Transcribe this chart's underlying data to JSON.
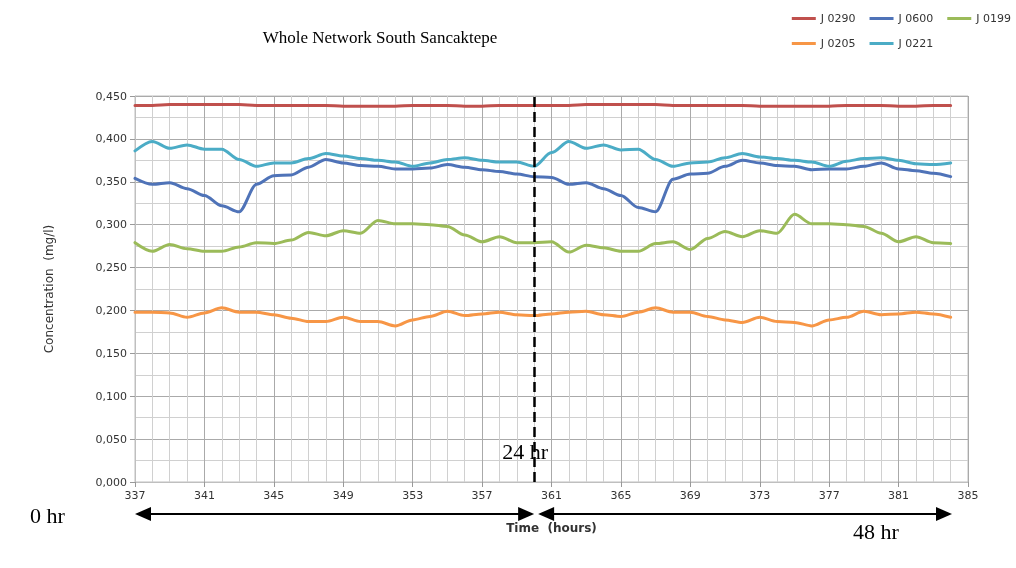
{
  "chart_data": {
    "type": "line",
    "title": "Whole Network South Sancaktepe",
    "xlabel": "Time  (hours)",
    "ylabel": "Concentration  (mg/l)",
    "x": [
      337,
      338,
      339,
      340,
      341,
      342,
      343,
      344,
      345,
      346,
      347,
      348,
      349,
      350,
      351,
      352,
      353,
      354,
      355,
      356,
      357,
      358,
      359,
      360,
      361,
      362,
      363,
      364,
      365,
      366,
      367,
      368,
      369,
      370,
      371,
      372,
      373,
      374,
      375,
      376,
      377,
      378,
      379,
      380,
      381,
      382,
      383,
      384
    ],
    "series": [
      {
        "name": "J 0290",
        "color": "#c0504d",
        "values": [
          0.439,
          0.439,
          0.44,
          0.44,
          0.44,
          0.44,
          0.44,
          0.439,
          0.439,
          0.439,
          0.439,
          0.439,
          0.438,
          0.438,
          0.438,
          0.438,
          0.439,
          0.439,
          0.439,
          0.438,
          0.438,
          0.439,
          0.439,
          0.439,
          0.439,
          0.439,
          0.44,
          0.44,
          0.44,
          0.44,
          0.44,
          0.439,
          0.439,
          0.439,
          0.439,
          0.439,
          0.438,
          0.438,
          0.438,
          0.438,
          0.438,
          0.439,
          0.439,
          0.439,
          0.438,
          0.438,
          0.439,
          0.439
        ]
      },
      {
        "name": "J 0600",
        "color": "#4f73b8",
        "values": [
          0.354,
          0.347,
          0.349,
          0.342,
          0.334,
          0.322,
          0.315,
          0.347,
          0.357,
          0.358,
          0.367,
          0.376,
          0.372,
          0.369,
          0.368,
          0.365,
          0.365,
          0.366,
          0.37,
          0.367,
          0.364,
          0.362,
          0.359,
          0.356,
          0.355,
          0.347,
          0.349,
          0.342,
          0.334,
          0.32,
          0.315,
          0.353,
          0.359,
          0.36,
          0.368,
          0.375,
          0.372,
          0.369,
          0.368,
          0.364,
          0.365,
          0.365,
          0.368,
          0.372,
          0.365,
          0.363,
          0.36,
          0.356
        ]
      },
      {
        "name": "J 0199",
        "color": "#9bbb59",
        "values": [
          0.279,
          0.269,
          0.277,
          0.272,
          0.269,
          0.269,
          0.274,
          0.279,
          0.278,
          0.282,
          0.291,
          0.287,
          0.293,
          0.29,
          0.305,
          0.301,
          0.301,
          0.3,
          0.298,
          0.288,
          0.28,
          0.286,
          0.279,
          0.279,
          0.28,
          0.268,
          0.276,
          0.273,
          0.269,
          0.269,
          0.278,
          0.28,
          0.271,
          0.284,
          0.292,
          0.286,
          0.293,
          0.29,
          0.312,
          0.301,
          0.301,
          0.3,
          0.298,
          0.29,
          0.28,
          0.286,
          0.279,
          0.278
        ]
      },
      {
        "name": "J 0205",
        "color": "#f79646",
        "values": [
          0.198,
          0.198,
          0.197,
          0.192,
          0.197,
          0.203,
          0.198,
          0.198,
          0.195,
          0.191,
          0.187,
          0.187,
          0.192,
          0.187,
          0.187,
          0.182,
          0.189,
          0.193,
          0.199,
          0.194,
          0.196,
          0.198,
          0.195,
          0.194,
          0.196,
          0.198,
          0.199,
          0.195,
          0.193,
          0.198,
          0.203,
          0.198,
          0.198,
          0.193,
          0.189,
          0.186,
          0.192,
          0.187,
          0.186,
          0.182,
          0.189,
          0.192,
          0.199,
          0.195,
          0.196,
          0.198,
          0.196,
          0.192
        ]
      },
      {
        "name": "J 0221",
        "color": "#4bacc6",
        "values": [
          0.386,
          0.397,
          0.389,
          0.393,
          0.388,
          0.388,
          0.376,
          0.368,
          0.372,
          0.372,
          0.377,
          0.383,
          0.38,
          0.377,
          0.375,
          0.373,
          0.368,
          0.372,
          0.376,
          0.378,
          0.375,
          0.373,
          0.373,
          0.368,
          0.384,
          0.397,
          0.389,
          0.393,
          0.387,
          0.388,
          0.376,
          0.368,
          0.372,
          0.373,
          0.378,
          0.383,
          0.379,
          0.377,
          0.375,
          0.373,
          0.368,
          0.374,
          0.377,
          0.378,
          0.375,
          0.371,
          0.37,
          0.372
        ]
      }
    ],
    "xlim": [
      337,
      385
    ],
    "xticks": [
      337,
      341,
      345,
      349,
      353,
      357,
      361,
      365,
      369,
      373,
      377,
      381,
      385
    ],
    "ylim": [
      0,
      0.45
    ],
    "yticks": [
      {
        "value": 0,
        "label": "0,000"
      },
      {
        "value": 0.05,
        "label": "0,050"
      },
      {
        "value": 0.1,
        "label": "0,100"
      },
      {
        "value": 0.15,
        "label": "0,150"
      },
      {
        "value": 0.2,
        "label": "0,200"
      },
      {
        "value": 0.25,
        "label": "0,250"
      },
      {
        "value": 0.3,
        "label": "0,300"
      },
      {
        "value": 0.35,
        "label": "0,350"
      },
      {
        "value": 0.4,
        "label": "0,400"
      },
      {
        "value": 0.45,
        "label": "0,450"
      }
    ],
    "ref_lines": [
      {
        "axis": "x",
        "value": 360,
        "label": "24 hr",
        "color": "#000000",
        "line_style": "dashed"
      }
    ],
    "annotations": [
      "0 hr",
      "48 hr"
    ],
    "grid": true,
    "legend": "top right",
    "marker": "none",
    "line_style": "solid"
  }
}
